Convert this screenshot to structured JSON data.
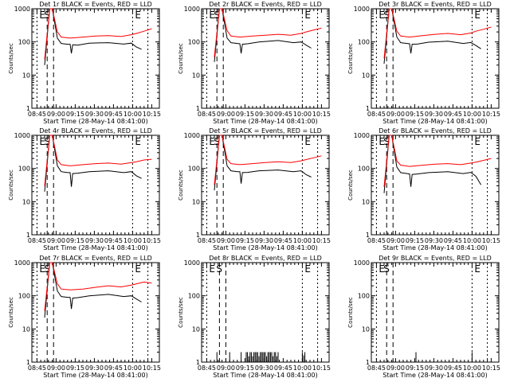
{
  "figure": {
    "colors": {
      "events": "#000000",
      "lld": "#ff0000",
      "axes": "#000000",
      "background": "#ffffff"
    },
    "common_x_ticks": [
      "08:45",
      "09:00",
      "09:15",
      "09:30",
      "09:45",
      "10:00",
      "10:15"
    ],
    "common_y_ticks": [
      "1",
      "10",
      "100",
      "1000"
    ],
    "ylabel": "Counts/sec",
    "xlabel": "Start Time (28-May-14 08:41:00)"
  },
  "chart_data": [
    {
      "type": "line",
      "title": "Det 1r BLACK = Events, RED = LLD",
      "xlabel": "Start Time (28-May-14 08:41:00)",
      "ylabel": "Counts/sec",
      "x_range_minutes": [
        0,
        100
      ],
      "ylim": [
        1,
        1000
      ],
      "log_y": true,
      "markers": [
        {
          "label": "E",
          "t": 4
        },
        {
          "label": "S",
          "t": 12
        },
        {
          "label": "E",
          "t": 79
        }
      ],
      "series": [
        {
          "name": "Events",
          "color": "#000000",
          "x": [
            10,
            14,
            16,
            20,
            23,
            28,
            30,
            31,
            32,
            36,
            45,
            60,
            72,
            78,
            82,
            86
          ],
          "values": [
            20,
            1000,
            1000,
            130,
            90,
            85,
            85,
            45,
            82,
            80,
            92,
            95,
            86,
            92,
            70,
            60
          ]
        },
        {
          "name": "LLD",
          "color": "#ff0000",
          "x": [
            10,
            14,
            16,
            20,
            23,
            30,
            40,
            50,
            60,
            70,
            78,
            82,
            88,
            94
          ],
          "values": [
            30,
            1000,
            1000,
            200,
            140,
            130,
            140,
            150,
            155,
            145,
            165,
            180,
            210,
            250
          ]
        }
      ]
    },
    {
      "type": "line",
      "title": "Det 2r BLACK = Events, RED = LLD",
      "xlabel": "Start Time (28-May-14 08:41:00)",
      "ylabel": "Counts/sec",
      "x_range_minutes": [
        0,
        100
      ],
      "ylim": [
        1,
        1000
      ],
      "log_y": true,
      "markers": [
        {
          "label": "E",
          "t": 4
        },
        {
          "label": "S",
          "t": 12
        },
        {
          "label": "E",
          "t": 79
        }
      ],
      "series": [
        {
          "name": "Events",
          "color": "#000000",
          "x": [
            10,
            14,
            16,
            20,
            23,
            28,
            30,
            31,
            32,
            36,
            45,
            60,
            72,
            78,
            82,
            86
          ],
          "values": [
            25,
            1000,
            1000,
            130,
            95,
            90,
            88,
            45,
            85,
            88,
            100,
            110,
            95,
            100,
            80,
            65
          ]
        },
        {
          "name": "LLD",
          "color": "#ff0000",
          "x": [
            10,
            14,
            16,
            20,
            23,
            30,
            40,
            50,
            60,
            70,
            78,
            82,
            88,
            94
          ],
          "values": [
            35,
            1000,
            1000,
            220,
            150,
            140,
            150,
            160,
            170,
            160,
            180,
            200,
            230,
            260
          ]
        }
      ]
    },
    {
      "type": "line",
      "title": "Det 3r BLACK = Events, RED = LLD",
      "xlabel": "Start Time (28-May-14 08:41:00)",
      "ylabel": "Counts/sec",
      "x_range_minutes": [
        0,
        100
      ],
      "ylim": [
        1,
        1000
      ],
      "log_y": true,
      "markers": [
        {
          "label": "E",
          "t": 4
        },
        {
          "label": "S",
          "t": 12
        },
        {
          "label": "E",
          "t": 79
        }
      ],
      "series": [
        {
          "name": "Events",
          "color": "#000000",
          "x": [
            10,
            14,
            16,
            20,
            23,
            28,
            30,
            31,
            32,
            36,
            45,
            60,
            72,
            78,
            82,
            86
          ],
          "values": [
            22,
            1000,
            1000,
            140,
            95,
            90,
            88,
            45,
            85,
            86,
            98,
            105,
            90,
            96,
            78,
            62
          ]
        },
        {
          "name": "LLD",
          "color": "#ff0000",
          "x": [
            10,
            14,
            16,
            20,
            23,
            30,
            40,
            50,
            60,
            70,
            78,
            82,
            88,
            94
          ],
          "values": [
            32,
            1000,
            1000,
            210,
            150,
            140,
            155,
            170,
            180,
            165,
            185,
            210,
            240,
            280
          ]
        }
      ]
    },
    {
      "type": "line",
      "title": "Det 4r BLACK = Events, RED = LLD",
      "xlabel": "Start Time (28-May-14 08:41:00)",
      "ylabel": "Counts/sec",
      "x_range_minutes": [
        0,
        100
      ],
      "ylim": [
        1,
        1000
      ],
      "log_y": true,
      "markers": [
        {
          "label": "E",
          "t": 4
        },
        {
          "label": "S",
          "t": 12
        },
        {
          "label": "E",
          "t": 79
        }
      ],
      "series": [
        {
          "name": "Events",
          "color": "#000000",
          "x": [
            10,
            14,
            16,
            20,
            23,
            28,
            30,
            31,
            32,
            36,
            45,
            60,
            72,
            78,
            82,
            86
          ],
          "values": [
            20,
            1000,
            1000,
            120,
            80,
            75,
            75,
            28,
            70,
            72,
            80,
            85,
            75,
            80,
            60,
            50
          ]
        },
        {
          "name": "LLD",
          "color": "#ff0000",
          "x": [
            10,
            14,
            16,
            20,
            23,
            30,
            40,
            50,
            60,
            70,
            78,
            82,
            88,
            94
          ],
          "values": [
            30,
            1000,
            1000,
            180,
            130,
            120,
            130,
            140,
            145,
            135,
            150,
            160,
            180,
            190
          ]
        }
      ]
    },
    {
      "type": "line",
      "title": "Det 5r BLACK = Events, RED = LLD",
      "xlabel": "Start Time (28-May-14 08:41:00)",
      "ylabel": "Counts/sec",
      "x_range_minutes": [
        0,
        100
      ],
      "ylim": [
        1,
        1000
      ],
      "log_y": true,
      "markers": [
        {
          "label": "E",
          "t": 4
        },
        {
          "label": "S",
          "t": 12
        },
        {
          "label": "E",
          "t": 79
        }
      ],
      "series": [
        {
          "name": "Events",
          "color": "#000000",
          "x": [
            10,
            14,
            16,
            20,
            23,
            28,
            30,
            31,
            32,
            36,
            45,
            60,
            72,
            78,
            82,
            86
          ],
          "values": [
            22,
            1000,
            1000,
            120,
            85,
            80,
            80,
            35,
            75,
            76,
            85,
            90,
            80,
            85,
            65,
            55
          ]
        },
        {
          "name": "LLD",
          "color": "#ff0000",
          "x": [
            10,
            14,
            16,
            20,
            23,
            30,
            40,
            50,
            60,
            70,
            78,
            82,
            88,
            94
          ],
          "values": [
            32,
            1000,
            1000,
            190,
            140,
            130,
            140,
            150,
            160,
            150,
            170,
            185,
            210,
            240
          ]
        }
      ]
    },
    {
      "type": "line",
      "title": "Det 6r BLACK = Events, RED = LLD",
      "xlabel": "Start Time (28-May-14 08:41:00)",
      "ylabel": "Counts/sec",
      "x_range_minutes": [
        0,
        100
      ],
      "ylim": [
        1,
        1000
      ],
      "log_y": true,
      "markers": [
        {
          "label": "E",
          "t": 4
        },
        {
          "label": "S",
          "t": 12
        },
        {
          "label": "E",
          "t": 79
        }
      ],
      "series": [
        {
          "name": "Events",
          "color": "#000000",
          "x": [
            10,
            14,
            16,
            20,
            23,
            28,
            30,
            31,
            32,
            36,
            45,
            60,
            72,
            78,
            82,
            86
          ],
          "values": [
            18,
            1000,
            1000,
            110,
            75,
            70,
            68,
            28,
            66,
            68,
            75,
            80,
            70,
            76,
            58,
            32
          ]
        },
        {
          "name": "LLD",
          "color": "#ff0000",
          "x": [
            10,
            14,
            16,
            20,
            23,
            30,
            40,
            50,
            60,
            70,
            78,
            82,
            88,
            94
          ],
          "values": [
            28,
            1000,
            1000,
            170,
            125,
            115,
            125,
            135,
            140,
            130,
            145,
            155,
            175,
            200
          ]
        }
      ]
    },
    {
      "type": "line",
      "title": "Det 7r BLACK = Events, RED = LLD",
      "xlabel": "Start Time (28-May-14 08:41:00)",
      "ylabel": "Counts/sec",
      "x_range_minutes": [
        0,
        100
      ],
      "ylim": [
        1,
        1000
      ],
      "log_y": true,
      "markers": [
        {
          "label": "E",
          "t": 4
        },
        {
          "label": "S",
          "t": 12
        },
        {
          "label": "E",
          "t": 79
        }
      ],
      "series": [
        {
          "name": "Events",
          "color": "#000000",
          "x": [
            10,
            14,
            16,
            20,
            23,
            28,
            30,
            31,
            32,
            36,
            45,
            60,
            72,
            78,
            82,
            86
          ],
          "values": [
            22,
            1000,
            1000,
            140,
            95,
            90,
            90,
            40,
            85,
            88,
            100,
            110,
            95,
            100,
            80,
            65
          ]
        },
        {
          "name": "LLD",
          "color": "#ff0000",
          "x": [
            10,
            14,
            16,
            20,
            23,
            30,
            40,
            50,
            60,
            70,
            78,
            82,
            88,
            94
          ],
          "values": [
            35,
            1000,
            1000,
            230,
            160,
            150,
            160,
            180,
            200,
            185,
            210,
            230,
            260,
            240
          ]
        }
      ]
    },
    {
      "type": "bar",
      "title": "Det 8r BLACK = Events, RED = LLD",
      "xlabel": "Start Time (28-May-14 08:41:00)",
      "ylabel": "Counts/sec",
      "x_range_minutes": [
        0,
        100
      ],
      "ylim": [
        1,
        1000
      ],
      "log_y": true,
      "markers": [
        {
          "label": "E",
          "t": 4
        },
        {
          "label": "S",
          "t": 14
        },
        {
          "label": "E",
          "t": 79
        }
      ],
      "series": [
        {
          "name": "Events",
          "color": "#000000",
          "x": [
            12,
            22,
            31,
            35,
            36,
            37,
            38,
            39,
            40,
            41,
            42,
            43,
            44,
            45,
            46,
            47,
            48,
            49,
            50,
            51,
            52,
            53,
            54,
            55,
            56,
            57,
            58,
            59,
            60,
            79,
            80,
            81
          ],
          "values": [
            2,
            2,
            2,
            2,
            2,
            1.5,
            2,
            2,
            1.5,
            2,
            2,
            2,
            2,
            1.5,
            2,
            2,
            2,
            2,
            2,
            1.5,
            2,
            2,
            2,
            2,
            1.5,
            2,
            2,
            1.5,
            2,
            2,
            1.6,
            2
          ]
        }
      ]
    },
    {
      "type": "bar",
      "title": "Det 9r BLACK = Events, RED = LLD",
      "xlabel": "Start Time (28-May-14 08:41:00)",
      "ylabel": "Counts/sec",
      "x_range_minutes": [
        0,
        100
      ],
      "ylim": [
        1,
        1000
      ],
      "log_y": true,
      "markers": [
        {
          "label": "E",
          "t": 4
        },
        {
          "label": "S",
          "t": 12
        },
        {
          "label": "E",
          "t": 79
        }
      ],
      "series": [
        {
          "name": "Events",
          "color": "#000000",
          "x": [
            35,
            79
          ],
          "values": [
            2,
            2
          ]
        }
      ]
    }
  ]
}
